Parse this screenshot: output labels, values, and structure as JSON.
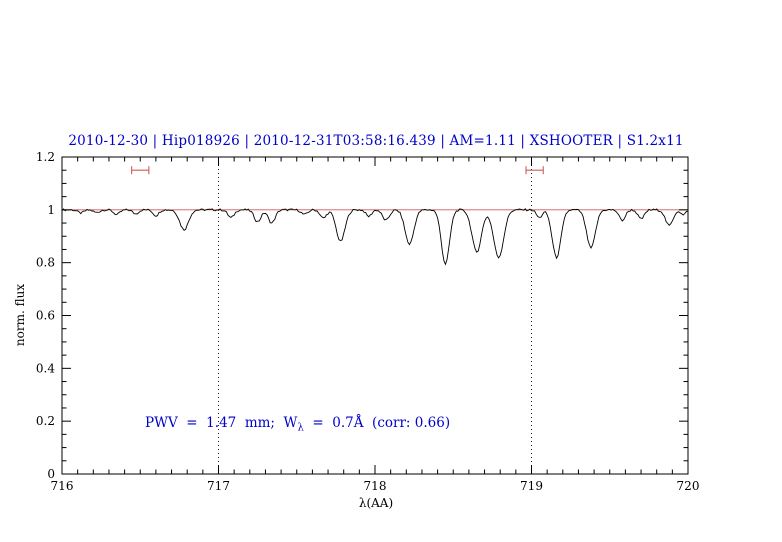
{
  "chart_data": {
    "type": "line",
    "title": "2010-12-30 | Hip018926 | 2010-12-31T03:58:16.439 | AM=1.11 | XSHOOTER | S1.2x11",
    "xlabel": "λ(AA)",
    "ylabel": "norm. flux",
    "xlim": [
      716,
      720
    ],
    "ylim": [
      0,
      1.2
    ],
    "xtick_values": [
      716,
      717,
      718,
      719,
      720
    ],
    "xtick_labels": [
      "716",
      "717",
      "718",
      "719",
      "720"
    ],
    "x_minor_step": 0.1,
    "ytick_values": [
      0,
      0.2,
      0.4,
      0.6,
      0.8,
      1,
      1.2
    ],
    "ytick_labels": [
      "0",
      "0.2",
      "0.4",
      "0.6",
      "0.8",
      "1",
      "1.2"
    ],
    "y_minor_step": 0.05,
    "grid": "off",
    "legend": "none",
    "vlines": [
      717,
      719
    ],
    "continuum_level": 1.0,
    "markers": [
      {
        "x": 716.5,
        "y": 1.15,
        "halfwidth": 0.055
      },
      {
        "x": 719.02,
        "y": 1.15,
        "halfwidth": 0.055
      }
    ],
    "annotation": {
      "pre": "PWV  =  1.47  mm;  W",
      "sub": "λ",
      "post": "  =  0.7Å  (corr: 0.66)"
    },
    "spectrum": {
      "continuum": 1.0,
      "sampling_step": 0.01,
      "noise_amplitude": 0.008,
      "absorption_lines": [
        [
          716.12,
          0.012,
          0.02
        ],
        [
          716.22,
          0.01,
          0.02
        ],
        [
          716.35,
          0.018,
          0.02
        ],
        [
          716.47,
          0.015,
          0.018
        ],
        [
          716.6,
          0.022,
          0.018
        ],
        [
          716.78,
          0.075,
          0.028
        ],
        [
          717.08,
          0.03,
          0.02
        ],
        [
          717.25,
          0.045,
          0.022
        ],
        [
          717.34,
          0.05,
          0.022
        ],
        [
          717.55,
          0.018,
          0.02
        ],
        [
          717.67,
          0.032,
          0.02
        ],
        [
          717.78,
          0.12,
          0.028
        ],
        [
          717.96,
          0.025,
          0.018
        ],
        [
          718.07,
          0.04,
          0.022
        ],
        [
          718.22,
          0.13,
          0.028
        ],
        [
          718.45,
          0.205,
          0.026
        ],
        [
          718.65,
          0.16,
          0.03
        ],
        [
          718.79,
          0.18,
          0.032
        ],
        [
          719.05,
          0.03,
          0.018
        ],
        [
          719.16,
          0.18,
          0.028
        ],
        [
          719.38,
          0.145,
          0.028
        ],
        [
          719.58,
          0.04,
          0.02
        ],
        [
          719.7,
          0.035,
          0.02
        ],
        [
          719.88,
          0.06,
          0.024
        ],
        [
          719.97,
          0.02,
          0.015
        ]
      ]
    },
    "colors": {
      "title": "#0000cc",
      "annotation": "#0000cc",
      "spectrum": "#000000",
      "continuum": "#cd5c5c",
      "marker": "#cd5c5c",
      "axis": "#000000",
      "vline": "#000000"
    }
  }
}
